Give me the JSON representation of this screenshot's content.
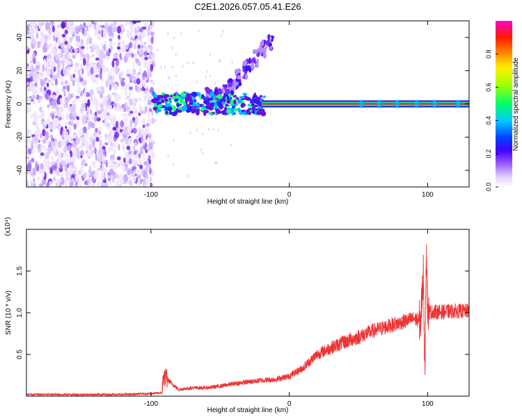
{
  "chart_data": [
    {
      "type": "heatmap",
      "title": "C2E1.2026.057.05.41.E26",
      "xlabel": "Height of straight line (km)",
      "ylabel": "Frequency (Hz)",
      "xlim": [
        -190,
        130
      ],
      "ylim": [
        -50,
        50
      ],
      "xticks": [
        -100,
        0,
        100
      ],
      "yticks": [
        -40,
        -20,
        0,
        20,
        40
      ],
      "colorbar": {
        "label": "Normalized spectral amplitude",
        "range": [
          0.0,
          1.0
        ],
        "ticks": [
          "0.0",
          "0.2",
          "0.4",
          "0.6",
          "0.8"
        ],
        "colors": [
          "#ffffff",
          "#c8b4ff",
          "#7a1fff",
          "#1e00ff",
          "#00c8ff",
          "#00ff50",
          "#ffff00",
          "#ff6000",
          "#ff0000",
          "#ff00c8"
        ]
      },
      "regions": [
        {
          "name": "broadband noise",
          "x_range": [
            -190,
            -98
          ],
          "f_range": [
            -50,
            50
          ]
        },
        {
          "name": "narrow line near 0 Hz",
          "x_range": [
            -98,
            130
          ],
          "f_center": 0
        },
        {
          "name": "rising branch",
          "x_range": [
            -55,
            -12
          ],
          "f_range": [
            5,
            40
          ]
        }
      ],
      "grid": false
    },
    {
      "type": "line",
      "xlabel": "Height of straight line (km)",
      "ylabel": "SNR (10 * v/v)",
      "y_multiplier": "(x10⁴)",
      "xlim": [
        -190,
        130
      ],
      "ylim": [
        0.0,
        2.0
      ],
      "xticks": [
        -100,
        0,
        100
      ],
      "yticks": [
        "0.5",
        "1.0",
        "1.5"
      ],
      "color": "#ee3333",
      "x": [
        -190,
        -150,
        -120,
        -100,
        -92,
        -91,
        -80,
        -70,
        -60,
        -50,
        -40,
        -30,
        -20,
        -10,
        0,
        10,
        20,
        30,
        40,
        50,
        60,
        70,
        80,
        90,
        95,
        97,
        98,
        99,
        100,
        102,
        110,
        120,
        130
      ],
      "y": [
        0.02,
        0.02,
        0.02,
        0.03,
        0.04,
        0.24,
        0.08,
        0.1,
        0.1,
        0.12,
        0.15,
        0.17,
        0.19,
        0.2,
        0.24,
        0.34,
        0.5,
        0.58,
        0.65,
        0.71,
        0.78,
        0.83,
        0.88,
        0.93,
        0.9,
        1.5,
        0.2,
        1.9,
        1.0,
        1.01,
        1.01,
        1.02,
        1.02
      ]
    }
  ]
}
